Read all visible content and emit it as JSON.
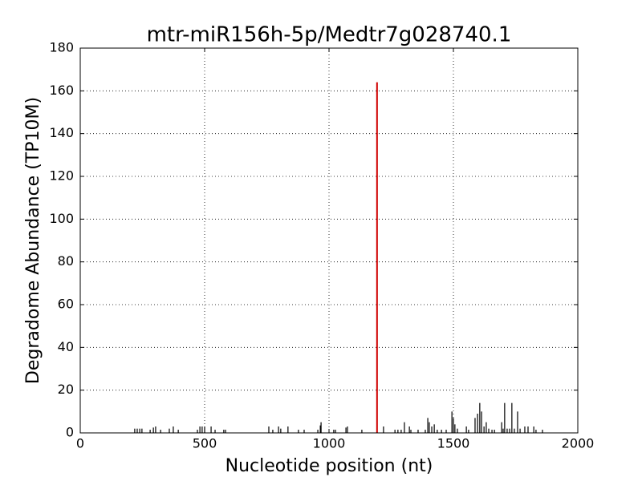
{
  "chart_data": {
    "type": "spike",
    "title": "mtr-miR156h-5p/Medtr7g028740.1",
    "x_label": "Nucleotide position (nt)",
    "y_label": "Degradome Abundance (TP10M)",
    "xlim": [
      0,
      2000
    ],
    "ylim": [
      0,
      180
    ],
    "xticks": [
      0,
      500,
      1000,
      1500,
      2000
    ],
    "yticks": [
      0,
      20,
      40,
      60,
      80,
      100,
      120,
      140,
      160,
      180
    ],
    "grid": true,
    "series": [
      {
        "color": "#000000",
        "x": [
          219,
          229,
          239,
          248,
          281,
          294,
          303,
          323,
          358,
          374,
          394,
          471,
          481,
          490,
          500,
          526,
          542,
          577,
          584,
          758,
          774,
          797,
          806,
          835,
          877,
          900,
          955,
          965,
          968,
          1019,
          1026,
          1068,
          1074,
          1132,
          1219,
          1265,
          1277,
          1290,
          1303,
          1323,
          1329,
          1358,
          1387,
          1397,
          1403,
          1413,
          1423,
          1435,
          1452,
          1471,
          1494,
          1500,
          1506,
          1516,
          1552,
          1561,
          1587,
          1597,
          1606,
          1613,
          1623,
          1632,
          1642,
          1655,
          1665,
          1694,
          1700,
          1706,
          1716,
          1726,
          1735,
          1745,
          1758,
          1768,
          1787,
          1800,
          1823,
          1832,
          1858
        ],
        "values": [
          2,
          2,
          2,
          2,
          1.5,
          2.5,
          3,
          1.5,
          2,
          3,
          1.5,
          1.5,
          3,
          3,
          3,
          3,
          1.5,
          1.5,
          1.5,
          3,
          1.5,
          3,
          2,
          3,
          1.5,
          1.5,
          1.5,
          3.5,
          5,
          1.5,
          1.5,
          2.5,
          3,
          1.5,
          3,
          1.5,
          1.5,
          1.5,
          5,
          3,
          1.5,
          1.5,
          1.5,
          7,
          5,
          3,
          4,
          1.5,
          1.5,
          1.5,
          10,
          7,
          4,
          2,
          3,
          1.5,
          7,
          9,
          14,
          10,
          3,
          5,
          2,
          1.5,
          1.5,
          5,
          2,
          14,
          2,
          2,
          14,
          2,
          10,
          2,
          3,
          3,
          3,
          1.5,
          1.5
        ]
      },
      {
        "color": "#d00000",
        "x": [
          1193
        ],
        "values": [
          164
        ]
      }
    ]
  }
}
